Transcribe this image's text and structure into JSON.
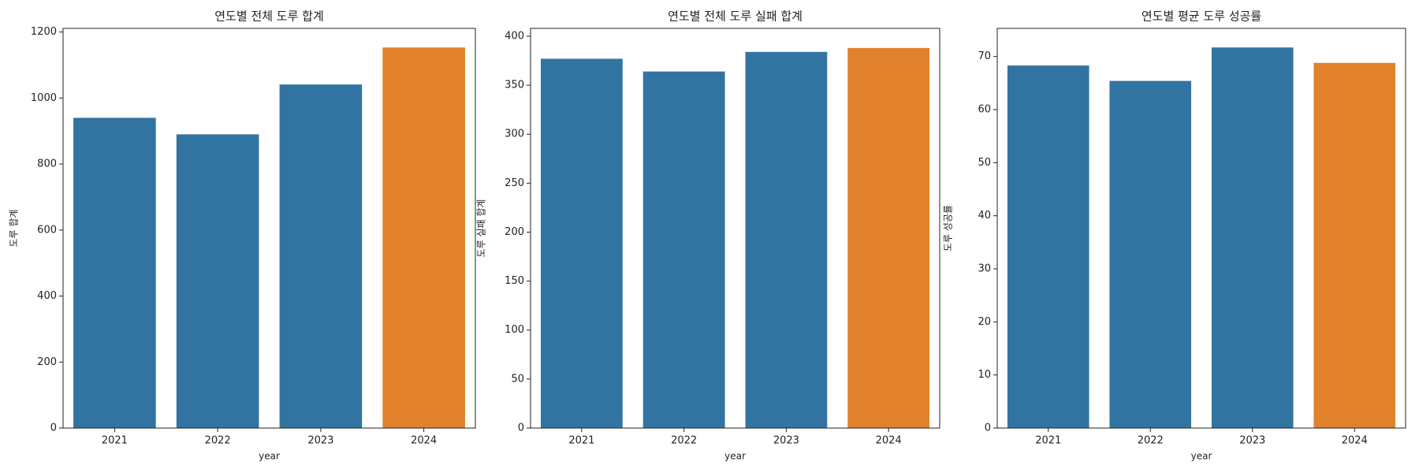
{
  "chart_data": [
    {
      "type": "bar",
      "title": "연도별 전체 도루 합계",
      "xlabel": "year",
      "ylabel": "도루 합계",
      "categories": [
        "2021",
        "2022",
        "2023",
        "2024"
      ],
      "values": [
        940,
        890,
        1041,
        1153
      ],
      "colors": [
        "#3274a1",
        "#3274a1",
        "#3274a1",
        "#e1812c"
      ],
      "ylim": [
        0,
        1211
      ],
      "yticks": [
        0,
        200,
        400,
        600,
        800,
        1000,
        1200
      ]
    },
    {
      "type": "bar",
      "title": "연도별 전체 도루 실패 합계",
      "xlabel": "year",
      "ylabel": "도루 실패 합계",
      "categories": [
        "2021",
        "2022",
        "2023",
        "2024"
      ],
      "values": [
        377,
        364,
        384,
        388
      ],
      "colors": [
        "#3274a1",
        "#3274a1",
        "#3274a1",
        "#e1812c"
      ],
      "ylim": [
        0,
        408
      ],
      "yticks": [
        0,
        50,
        100,
        150,
        200,
        250,
        300,
        350,
        400
      ]
    },
    {
      "type": "bar",
      "title": "연도별 평균 도루 성공률",
      "xlabel": "year",
      "ylabel": "도루 성공률",
      "categories": [
        "2021",
        "2022",
        "2023",
        "2024"
      ],
      "values": [
        68.3,
        65.4,
        71.7,
        68.8
      ],
      "colors": [
        "#3274a1",
        "#3274a1",
        "#3274a1",
        "#e1812c"
      ],
      "ylim": [
        0,
        75.3
      ],
      "yticks": [
        0,
        10,
        20,
        30,
        40,
        50,
        60,
        70
      ]
    }
  ]
}
